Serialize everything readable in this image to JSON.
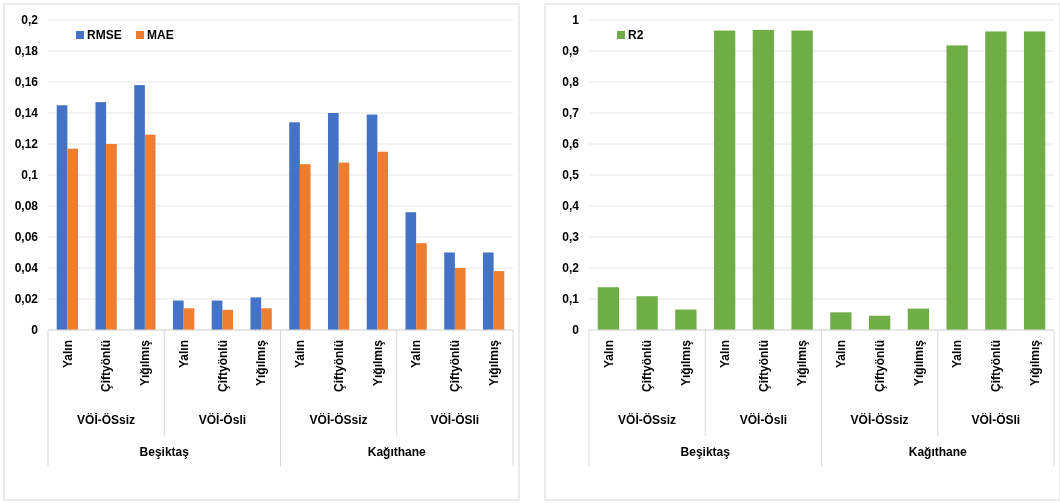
{
  "chart_data": [
    {
      "type": "bar",
      "categories": [
        "Yalın",
        "Çiftyönlü",
        "Yığılmış",
        "Yalın",
        "Çiftyönlü",
        "Yığılmış",
        "Yalın",
        "Çiftyönlü",
        "Yığılmış",
        "Yalın",
        "Çiftyönlü",
        "Yığılmış"
      ],
      "series": [
        {
          "name": "RMSE",
          "color": "#4472c4",
          "values": [
            0.145,
            0.147,
            0.158,
            0.019,
            0.019,
            0.021,
            0.134,
            0.14,
            0.139,
            0.076,
            0.05,
            0.05
          ]
        },
        {
          "name": "MAE",
          "color": "#ed7d31",
          "values": [
            0.117,
            0.12,
            0.126,
            0.014,
            0.013,
            0.014,
            0.107,
            0.108,
            0.115,
            0.056,
            0.04,
            0.038
          ]
        }
      ],
      "annotations": [
        "VÖİ-ÖSsiz",
        "VÖİ-Ösli",
        "VÖİ-ÖSsiz",
        "VÖİ-ÖSli",
        "Beşiktaş",
        "Kağıthane"
      ],
      "ylim": [
        0,
        0.2
      ],
      "yticks": [
        {
          "value": 0,
          "label": "0"
        },
        {
          "value": 0.02,
          "label": "0,02"
        },
        {
          "value": 0.04,
          "label": "0,04"
        },
        {
          "value": 0.06,
          "label": "0,06"
        },
        {
          "value": 0.08,
          "label": "0,08"
        },
        {
          "value": 0.1,
          "label": "0,1"
        },
        {
          "value": 0.12,
          "label": "0,12"
        },
        {
          "value": 0.14,
          "label": "0,14"
        },
        {
          "value": 0.16,
          "label": "0,16"
        },
        {
          "value": 0.18,
          "label": "0,18"
        },
        {
          "value": 0.2,
          "label": "0,2"
        }
      ],
      "grid": "y",
      "legend": "top left"
    },
    {
      "type": "bar",
      "categories": [
        "Yalın",
        "Çiftyönlü",
        "Yığılmış",
        "Yalın",
        "Çiftyönlü",
        "Yığılmış",
        "Yalın",
        "Çiftyönlü",
        "Yığılmış",
        "Yalın",
        "Çiftyönlü",
        "Yığılmış"
      ],
      "series": [
        {
          "name": "R2",
          "color": "#70ad47",
          "values": [
            0.138,
            0.109,
            0.066,
            0.966,
            0.968,
            0.966,
            0.057,
            0.046,
            0.069,
            0.918,
            0.963,
            0.963
          ]
        }
      ],
      "annotations": [
        "VÖİ-ÖSsiz",
        "VÖİ-Ösli",
        "VÖİ-ÖSsiz",
        "VÖİ-ÖSli",
        "Beşiktaş",
        "Kağıthane"
      ],
      "ylim": [
        0,
        1
      ],
      "yticks": [
        {
          "value": 0,
          "label": "0"
        },
        {
          "value": 0.1,
          "label": "0,1"
        },
        {
          "value": 0.2,
          "label": "0,2"
        },
        {
          "value": 0.3,
          "label": "0,3"
        },
        {
          "value": 0.4,
          "label": "0,4"
        },
        {
          "value": 0.5,
          "label": "0,5"
        },
        {
          "value": 0.6,
          "label": "0,6"
        },
        {
          "value": 0.7,
          "label": "0,7"
        },
        {
          "value": 0.8,
          "label": "0,8"
        },
        {
          "value": 0.9,
          "label": "0,9"
        },
        {
          "value": 1,
          "label": "1"
        }
      ],
      "grid": "y",
      "legend": "top left"
    }
  ]
}
